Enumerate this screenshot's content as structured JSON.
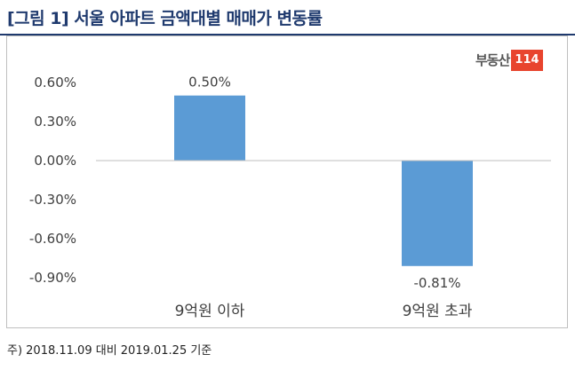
{
  "figure": {
    "title": "[그림 1] 서울 아파트 금액대별 매매가 변동률",
    "footnote": "주) 2018.11.09 대비 2019.01.25 기준"
  },
  "brand": {
    "text": "부동산",
    "number": "114",
    "color": "#e8442e"
  },
  "chart_data": {
    "type": "bar",
    "categories": [
      "9억원 이하",
      "9억원 초과"
    ],
    "values": [
      0.5,
      -0.81
    ],
    "data_labels": [
      "0.50%",
      "-0.81%"
    ],
    "y_ticks": [
      0.6,
      0.3,
      0.0,
      -0.3,
      -0.6,
      -0.9
    ],
    "y_tick_labels": [
      "0.60%",
      "0.30%",
      "0.00%",
      "-0.30%",
      "-0.60%",
      "-0.90%"
    ],
    "ylim": [
      -0.9,
      0.6
    ],
    "grid": false,
    "bar_color": "#5b9bd5",
    "title": "",
    "xlabel": "",
    "ylabel": ""
  }
}
